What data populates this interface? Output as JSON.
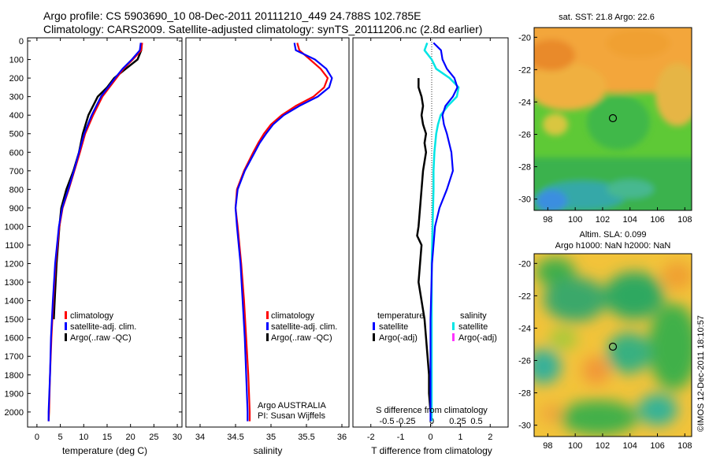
{
  "header": {
    "line1": "Argo profile: CS 5903690_10 08-Dec-2011 20111210_449 24.788S 102.785E",
    "line2": "Climatology: CARS2009. Satellite-adjusted climatology: synTS_20111206.nc (2.8d earlier)"
  },
  "colors": {
    "climatology": "#ff0000",
    "satellite": "#0000ff",
    "argo": "#000000",
    "sal_satellite": "#00e5e5",
    "sal_argo": "#ff33ff"
  },
  "depth_ticks": [
    "0",
    "100",
    "200",
    "300",
    "400",
    "500",
    "600",
    "700",
    "800",
    "900",
    "1000",
    "1100",
    "1200",
    "1300",
    "1400",
    "1500",
    "1600",
    "1700",
    "1800",
    "1900",
    "2000"
  ],
  "chart_data": [
    {
      "type": "line",
      "xlabel": "temperature (deg C)",
      "xlim": [
        -2,
        31
      ],
      "xticks": [
        "0",
        "5",
        "10",
        "15",
        "20",
        "25",
        "30"
      ],
      "ylim": [
        0,
        2060
      ],
      "legend": [
        "climatology",
        "satellite-adj. clim.",
        "Argo(..raw -QC)"
      ],
      "series": [
        {
          "name": "climatology",
          "depth": [
            10,
            50,
            100,
            150,
            200,
            250,
            300,
            400,
            500,
            600,
            700,
            800,
            900,
            1000,
            1200,
            1400,
            1600,
            1800,
            2000,
            2050
          ],
          "values": [
            22.5,
            22.3,
            20.5,
            18.5,
            17.0,
            15.5,
            14.0,
            12.0,
            10.3,
            9.2,
            8.0,
            6.8,
            5.5,
            4.8,
            4.0,
            3.5,
            3.1,
            2.8,
            2.6,
            2.5
          ]
        },
        {
          "name": "satellite-adj. clim.",
          "depth": [
            10,
            50,
            100,
            150,
            200,
            250,
            300,
            400,
            500,
            600,
            700,
            800,
            900,
            1000,
            1200,
            1400,
            1600,
            1800,
            2000,
            2050
          ],
          "values": [
            22.2,
            22.0,
            20.3,
            18.3,
            16.7,
            15.2,
            13.7,
            11.7,
            10.1,
            9.0,
            7.9,
            6.7,
            5.4,
            4.7,
            3.9,
            3.4,
            3.0,
            2.8,
            2.5,
            2.5
          ]
        },
        {
          "name": "Argo(..raw -QC)",
          "depth": [
            10,
            50,
            100,
            150,
            200,
            250,
            300,
            400,
            500,
            600,
            700,
            800,
            900,
            1000,
            1100,
            1200,
            1300,
            1400,
            1500
          ],
          "values": [
            22.4,
            22.3,
            21.5,
            19.0,
            16.5,
            15.0,
            13.0,
            11.0,
            9.8,
            9.0,
            7.8,
            6.3,
            5.2,
            4.8,
            4.5,
            4.2,
            4.0,
            3.8,
            3.6
          ]
        }
      ]
    },
    {
      "type": "line",
      "xlabel": "salinity",
      "xlim": [
        33.8,
        36.1
      ],
      "xticks": [
        "34",
        "34.5",
        "35",
        "35.5",
        "36"
      ],
      "ylim": [
        0,
        2060
      ],
      "legend": [
        "climatology",
        "satellite-adj. clim.",
        "Argo(..raw -QC)"
      ],
      "annotation": [
        "Argo AUSTRALIA",
        "PI: Susan Wijffels"
      ],
      "series": [
        {
          "name": "climatology",
          "depth": [
            10,
            50,
            100,
            150,
            200,
            250,
            300,
            350,
            400,
            450,
            500,
            550,
            600,
            700,
            800,
            900,
            1000,
            1200,
            1400,
            1600,
            1800,
            2000,
            2050
          ],
          "values": [
            35.37,
            35.4,
            35.55,
            35.7,
            35.8,
            35.75,
            35.6,
            35.35,
            35.15,
            35.0,
            34.9,
            34.82,
            34.75,
            34.62,
            34.52,
            34.5,
            34.53,
            34.58,
            34.62,
            34.65,
            34.68,
            34.7,
            34.7
          ]
        },
        {
          "name": "satellite-adj. clim.",
          "depth": [
            10,
            50,
            100,
            150,
            200,
            250,
            300,
            350,
            400,
            450,
            500,
            550,
            600,
            700,
            800,
            900,
            1000,
            1200,
            1400,
            1600,
            1800,
            2000,
            2050
          ],
          "values": [
            35.33,
            35.35,
            35.62,
            35.78,
            35.86,
            35.82,
            35.66,
            35.4,
            35.18,
            35.03,
            34.93,
            34.84,
            34.77,
            34.63,
            34.53,
            34.5,
            34.52,
            34.57,
            34.6,
            34.63,
            34.65,
            34.67,
            34.67
          ]
        }
      ]
    },
    {
      "type": "line",
      "xlabel": "T difference from climatology",
      "xlabel_top": "S difference from climatology",
      "xlim": [
        -2.6,
        2.6
      ],
      "xticks": [
        "-2",
        "-1",
        "0",
        "1",
        "2"
      ],
      "xticks_top": [
        "-0.5",
        "-0.25",
        "0",
        "0.25",
        "0.5"
      ],
      "ylim": [
        0,
        2060
      ],
      "legend_temperature": [
        "temperature",
        "satellite",
        "Argo(-adj)"
      ],
      "legend_salinity": [
        "salinity",
        "satellite",
        "Argo(-adj)"
      ],
      "series": [
        {
          "name": "satellite",
          "depth": [
            10,
            50,
            100,
            150,
            200,
            250,
            300,
            350,
            400,
            450,
            500,
            600,
            700,
            800,
            900,
            1000,
            1200,
            1500,
            1800,
            2050
          ],
          "values": [
            0.1,
            0.35,
            0.4,
            0.55,
            0.8,
            0.9,
            0.75,
            0.5,
            0.4,
            0.45,
            0.55,
            0.7,
            0.75,
            0.55,
            0.3,
            0.15,
            0.05,
            0.0,
            0.0,
            0.0
          ]
        },
        {
          "name": "Argo(-adj)",
          "depth": [
            200,
            220,
            250,
            300,
            350,
            400,
            450,
            500,
            550,
            600,
            700,
            800,
            900,
            1000,
            1050,
            1100,
            1200,
            1300,
            1400,
            1500,
            1600,
            1700,
            1800,
            1900,
            2000
          ],
          "values": [
            -0.4,
            -0.4,
            -0.4,
            -0.3,
            -0.25,
            -0.3,
            -0.25,
            -0.15,
            -0.2,
            -0.15,
            -0.25,
            -0.3,
            -0.35,
            -0.4,
            -0.45,
            -0.3,
            -0.35,
            -0.4,
            -0.3,
            -0.2,
            -0.15,
            -0.1,
            -0.05,
            -0.05,
            0.0
          ]
        },
        {
          "name": "salinity satellite",
          "depth": [
            10,
            50,
            100,
            150,
            200,
            250,
            300,
            350,
            400,
            450,
            500,
            600,
            700,
            800,
            1000,
            1200,
            1500,
            2050
          ],
          "values": [
            -0.05,
            -0.08,
            0.0,
            0.05,
            0.2,
            0.3,
            0.28,
            0.18,
            0.1,
            0.07,
            0.05,
            0.03,
            0.02,
            0.02,
            0.01,
            0.0,
            0.0,
            0.0
          ]
        }
      ]
    },
    {
      "type": "heatmap",
      "title": "sat. SST: 21.8  Argo: 22.6",
      "xticks": [
        "98",
        "100",
        "102",
        "104",
        "106",
        "108"
      ],
      "yticks": [
        "-20",
        "-22",
        "-24",
        "-26",
        "-28",
        "-30"
      ],
      "xlim": [
        97,
        108.5
      ],
      "ylim": [
        -30.7,
        -19.4
      ],
      "marker": {
        "lon": 102.8,
        "lat": -24.8
      }
    },
    {
      "type": "heatmap",
      "title_lines": [
        "Altim. SLA: 0.099",
        "Argo h1000: NaN h2000: NaN"
      ],
      "xticks": [
        "98",
        "100",
        "102",
        "104",
        "106",
        "108"
      ],
      "yticks": [
        "-20",
        "-22",
        "-24",
        "-26",
        "-28",
        "-30"
      ],
      "xlim": [
        97,
        108.5
      ],
      "ylim": [
        -30.7,
        -19.4
      ],
      "marker": {
        "lon": 102.8,
        "lat": -24.8
      }
    }
  ],
  "credit": "©IMOS 12-Dec-2011 18:10:57"
}
